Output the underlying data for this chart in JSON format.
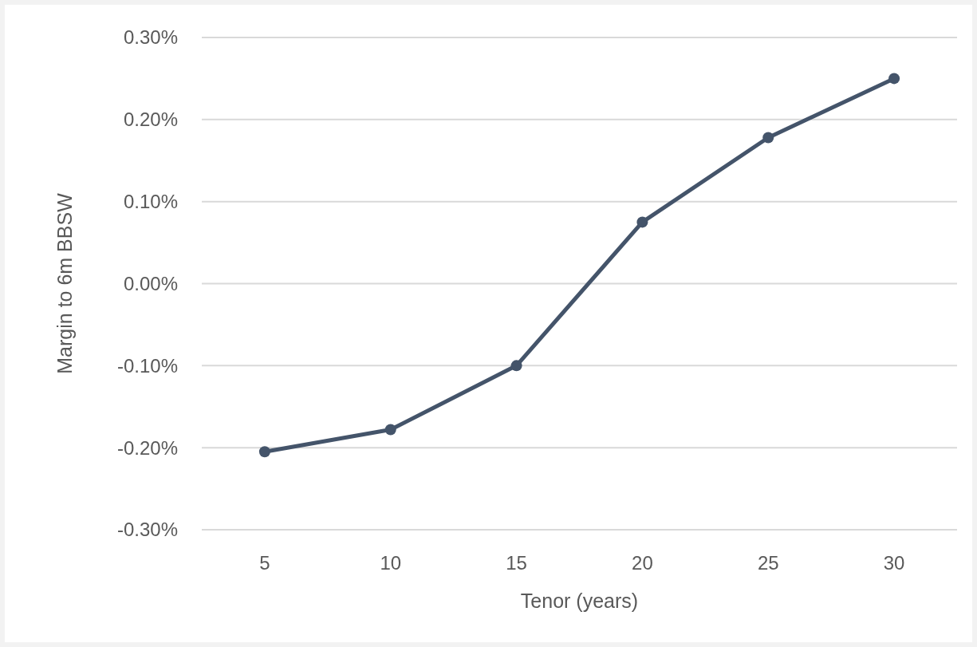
{
  "chart_data": {
    "type": "line",
    "xlabel": "Tenor (years)",
    "ylabel": "Margin to 6m BBSW",
    "categories": [
      "5",
      "10",
      "15",
      "20",
      "25",
      "30"
    ],
    "series": [
      {
        "color": "#44546a",
        "values": [
          -0.205,
          -0.178,
          -0.1,
          0.075,
          0.178,
          0.25
        ]
      }
    ],
    "ylim": [
      -0.3,
      0.3
    ],
    "yticks": [
      {
        "value": -0.3,
        "label": "-0.30%"
      },
      {
        "value": -0.2,
        "label": "-0.20%"
      },
      {
        "value": -0.1,
        "label": "-0.10%"
      },
      {
        "value": 0,
        "label": "0.00%"
      },
      {
        "value": 0.1,
        "label": "0.10%"
      },
      {
        "value": 0.2,
        "label": "0.20%"
      },
      {
        "value": 0.3,
        "label": "0.30%"
      }
    ],
    "grid": "y",
    "marker": "circle",
    "line_style": "solid"
  }
}
